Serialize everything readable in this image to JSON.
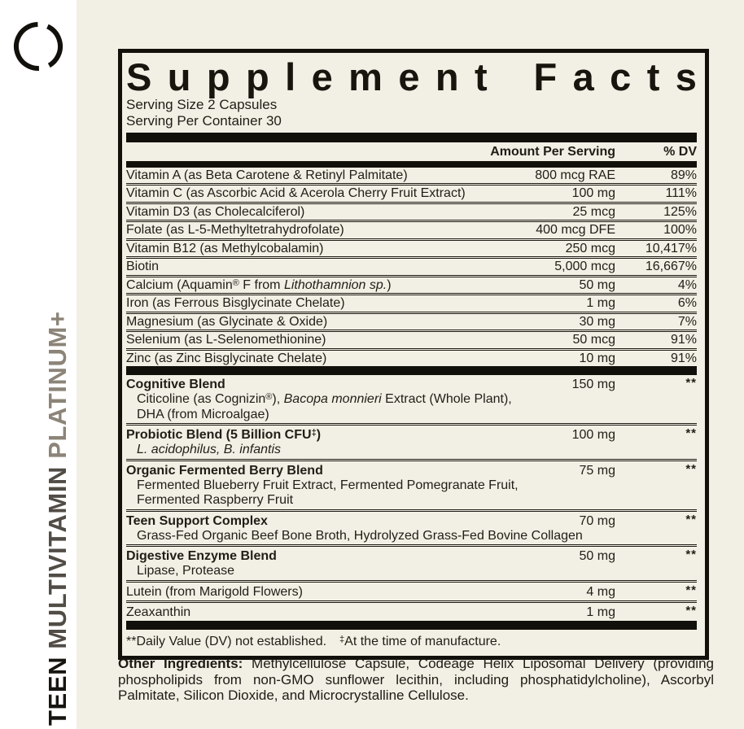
{
  "theme": {
    "background": "#f2efe4",
    "left_strip": "#ffffff",
    "ink": "#1b1913",
    "bar_black": "#12100b",
    "platinum_gray": "#8c8478"
  },
  "sidebar": {
    "logo_icon": "broken-circle-logo",
    "product_words": [
      {
        "text": "TEEN",
        "color": "#17150f"
      },
      {
        "text": "MULTIVITAMIN",
        "color": "#514c45"
      },
      {
        "text": "PLATINUM+",
        "color": "#8c8478"
      }
    ]
  },
  "label": {
    "title": "Supplement Facts",
    "serving_size": "Serving Size 2 Capsules",
    "servings_per_container": "Serving Per Container 30",
    "columns": {
      "amount": "Amount Per Serving",
      "dv": "% DV"
    },
    "nutrients": [
      {
        "name": [
          {
            "t": "Vitamin A (as Beta Carotene & Retinyl Palmitate)"
          }
        ],
        "amount": "800 mcg RAE",
        "dv": "89%"
      },
      {
        "name": [
          {
            "t": "Vitamin C (as Ascorbic Acid & Acerola Cherry Fruit Extract)"
          }
        ],
        "amount": "100 mg",
        "dv": "111%"
      },
      {
        "name": [
          {
            "t": "Vitamin D3 (as Cholecalciferol)"
          }
        ],
        "amount": "25 mcg",
        "dv": "125%"
      },
      {
        "name": [
          {
            "t": "Folate (as L-5-Methyltetrahydrofolate)"
          }
        ],
        "amount": "400 mcg DFE",
        "dv": "100%"
      },
      {
        "name": [
          {
            "t": "Vitamin B12 (as Methylcobalamin)"
          }
        ],
        "amount": "250 mcg",
        "dv": "10,417%"
      },
      {
        "name": [
          {
            "t": "Biotin"
          }
        ],
        "amount": "5,000 mcg",
        "dv": "16,667%"
      },
      {
        "name": [
          {
            "t": "Calcium (Aquamin"
          },
          {
            "t": "®",
            "sup": true
          },
          {
            "t": " F from "
          },
          {
            "t": "Lithothamnion sp.",
            "i": true
          },
          {
            "t": ")"
          }
        ],
        "amount": "50 mg",
        "dv": "4%"
      },
      {
        "name": [
          {
            "t": "Iron (as Ferrous Bisglycinate Chelate)"
          }
        ],
        "amount": "1 mg",
        "dv": "6%"
      },
      {
        "name": [
          {
            "t": "Magnesium (as Glycinate & Oxide)"
          }
        ],
        "amount": "30 mg",
        "dv": "7%"
      },
      {
        "name": [
          {
            "t": "Selenium (as L-Selenomethionine)"
          }
        ],
        "amount": "50 mcg",
        "dv": "91%"
      },
      {
        "name": [
          {
            "t": "Zinc (as Zinc Bisglycinate Chelate)"
          }
        ],
        "amount": "10 mg",
        "dv": "91%"
      }
    ],
    "blends": [
      {
        "b": true,
        "name": [
          {
            "t": "Cognitive Blend"
          }
        ],
        "amount": "150 mg",
        "dv": "**",
        "subs": [
          [
            {
              "t": "Citicoline (as Cognizin"
            },
            {
              "t": "®",
              "sup": true
            },
            {
              "t": "), "
            },
            {
              "t": "Bacopa monnieri",
              "i": true
            },
            {
              "t": " Extract (Whole Plant),"
            }
          ],
          [
            {
              "t": "DHA (from Microalgae)"
            }
          ]
        ]
      },
      {
        "b": true,
        "name": [
          {
            "t": "Probiotic Blend (5 Billion CFU"
          },
          {
            "t": "‡",
            "sup": true
          },
          {
            "t": ")"
          }
        ],
        "amount": "100 mg",
        "dv": "**",
        "subs": [
          [
            {
              "t": "L. acidophilus, B. infantis",
              "i": true
            }
          ]
        ]
      },
      {
        "b": true,
        "name": [
          {
            "t": "Organic Fermented Berry Blend"
          }
        ],
        "amount": "75 mg",
        "dv": "**",
        "subs": [
          [
            {
              "t": "Fermented Blueberry Fruit Extract, Fermented Pomegranate Fruit,"
            }
          ],
          [
            {
              "t": "Fermented Raspberry Fruit"
            }
          ]
        ]
      },
      {
        "b": true,
        "name": [
          {
            "t": "Teen Support Complex"
          }
        ],
        "amount": "70 mg",
        "dv": "**",
        "subs": [
          [
            {
              "t": "Grass-Fed Organic Beef Bone Broth, Hydrolyzed Grass-Fed Bovine Collagen"
            }
          ]
        ]
      },
      {
        "b": true,
        "name": [
          {
            "t": "Digestive Enzyme Blend"
          }
        ],
        "amount": "50 mg",
        "dv": "**",
        "subs": [
          [
            {
              "t": "Lipase, Protease"
            }
          ]
        ]
      },
      {
        "b": false,
        "name": [
          {
            "t": "Lutein (from Marigold Flowers)"
          }
        ],
        "amount": "4 mg",
        "dv": "**",
        "subs": []
      },
      {
        "b": false,
        "name": [
          {
            "t": "Zeaxanthin"
          }
        ],
        "amount": "1 mg",
        "dv": "**",
        "subs": []
      }
    ],
    "footnote_dv": "**Daily Value (DV) not established.",
    "footnote_mfg_symbol": "‡",
    "footnote_mfg_text": "At the time of manufacture.",
    "other_ingredients_label": "Other Ingredients:",
    "other_ingredients_text": " Methylcellulose Capsule, Codeage Helix Liposomal Delivery (providing phospholipids from non-GMO sunflower lecithin, including phosphatidylcholine), Ascorbyl Palmitate, Silicon Dioxide, and Microcrystalline Cellulose."
  }
}
